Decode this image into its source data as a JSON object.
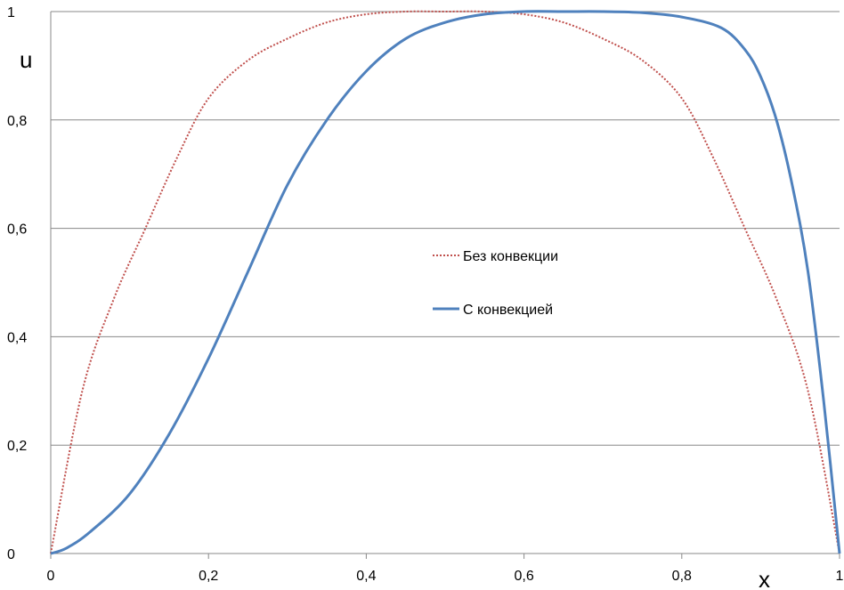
{
  "chart_data": {
    "type": "line",
    "title": "",
    "xlabel": "x",
    "ylabel": "u",
    "xlim": [
      0,
      1
    ],
    "ylim": [
      0,
      1
    ],
    "x_ticks": [
      "0",
      "0,2",
      "0,4",
      "0,6",
      "0,8",
      "1"
    ],
    "y_ticks": [
      "0",
      "0,2",
      "0,4",
      "0,6",
      "0,8",
      "1"
    ],
    "grid": "horizontal",
    "legend_position": "center-right",
    "series": [
      {
        "name": "Без конвекции",
        "color": "#c0504d",
        "style": "dotted",
        "x": [
          0,
          0.04,
          0.08,
          0.12,
          0.16,
          0.2,
          0.25,
          0.3,
          0.35,
          0.4,
          0.45,
          0.5,
          0.55,
          0.6,
          0.65,
          0.7,
          0.75,
          0.8,
          0.84,
          0.88,
          0.92,
          0.96,
          1
        ],
        "y": [
          0,
          0.3,
          0.47,
          0.6,
          0.73,
          0.84,
          0.91,
          0.95,
          0.98,
          0.995,
          1.0,
          1.0,
          1.0,
          0.995,
          0.98,
          0.95,
          0.91,
          0.84,
          0.73,
          0.6,
          0.47,
          0.3,
          0
        ]
      },
      {
        "name": "С конвекцией",
        "color": "#4f81bd",
        "style": "solid",
        "x": [
          0,
          0.02,
          0.05,
          0.1,
          0.15,
          0.2,
          0.25,
          0.3,
          0.35,
          0.4,
          0.45,
          0.5,
          0.55,
          0.6,
          0.65,
          0.7,
          0.75,
          0.8,
          0.85,
          0.88,
          0.9,
          0.92,
          0.94,
          0.96,
          0.98,
          1
        ],
        "y": [
          0,
          0.01,
          0.04,
          0.11,
          0.22,
          0.36,
          0.52,
          0.68,
          0.8,
          0.89,
          0.95,
          0.98,
          0.995,
          1.0,
          1.0,
          1.0,
          0.998,
          0.99,
          0.97,
          0.93,
          0.88,
          0.8,
          0.68,
          0.52,
          0.28,
          0
        ]
      }
    ]
  }
}
